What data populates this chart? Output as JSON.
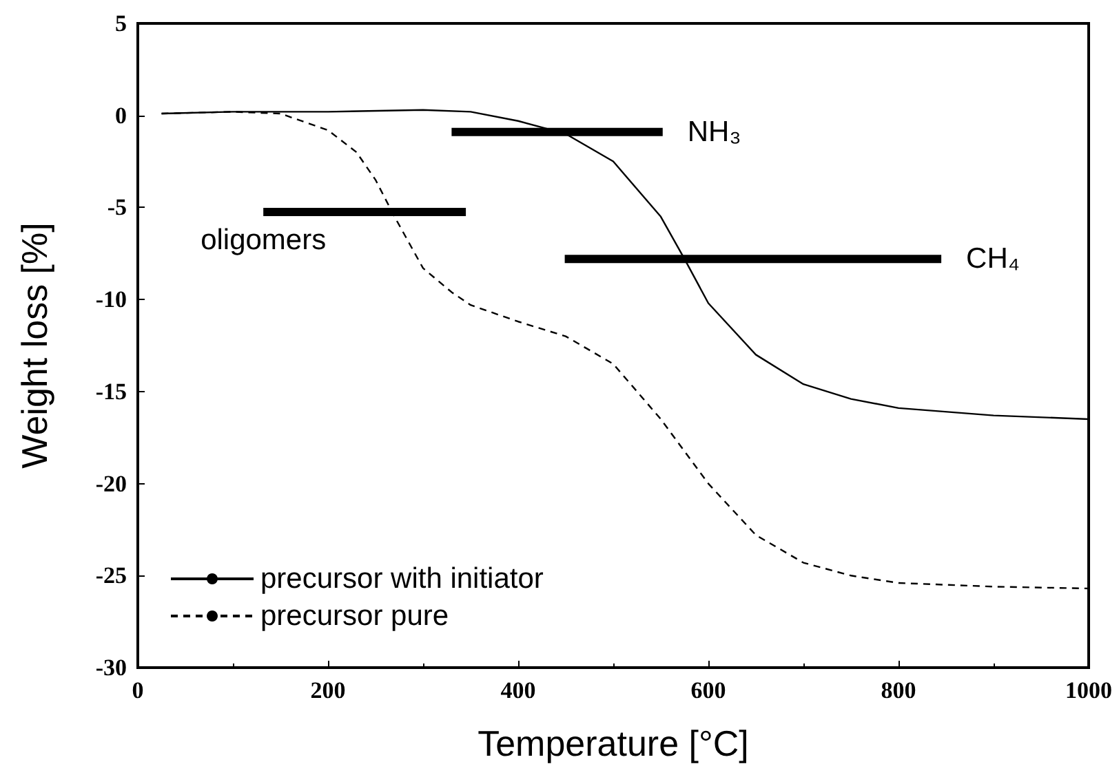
{
  "chart_data": {
    "type": "line",
    "xlabel": "Temperature [°C]",
    "ylabel": "Weight loss [%]",
    "xlim": [
      0,
      1000
    ],
    "xticks": [
      0,
      200,
      400,
      600,
      800,
      1000
    ],
    "ylim": [
      -30,
      5
    ],
    "yticks": [
      -30,
      -25,
      -20,
      -15,
      -10,
      -5,
      0,
      5
    ],
    "grid": false,
    "legend": "bottom left",
    "marker": "none",
    "series": [
      {
        "name": "precursor with initiator",
        "color": "#000000",
        "line_style": "solid",
        "x": [
          25,
          100,
          200,
          300,
          350,
          400,
          450,
          500,
          550,
          575,
          600,
          650,
          700,
          750,
          800,
          900,
          1000
        ],
        "values": [
          0.1,
          0.2,
          0.2,
          0.3,
          0.2,
          -0.3,
          -1,
          -2.5,
          -5.5,
          -7.8,
          -10.2,
          -13,
          -14.6,
          -15.4,
          -15.9,
          -16.3,
          -16.5
        ]
      },
      {
        "name": "precursor pure",
        "color": "#000000",
        "line_style": "dashed",
        "x": [
          25,
          100,
          150,
          200,
          230,
          250,
          270,
          300,
          330,
          350,
          400,
          450,
          500,
          550,
          600,
          650,
          700,
          750,
          800,
          900,
          1000
        ],
        "values": [
          0.1,
          0.2,
          0.1,
          -0.8,
          -2,
          -3.5,
          -5.5,
          -8.3,
          -9.6,
          -10.3,
          -11.2,
          -12,
          -13.5,
          -16.5,
          -20,
          -22.8,
          -24.3,
          -25,
          -25.4,
          -25.6,
          -25.7
        ]
      },
      {
        "name": "oligomers",
        "color": "#000000",
        "line_style": "solid",
        "x": [
          132,
          345
        ],
        "values": [
          -5.25,
          -5.25
        ]
      },
      {
        "name": "NH₃",
        "color": "#000000",
        "line_style": "solid",
        "x": [
          330,
          552
        ],
        "values": [
          -0.9,
          -0.9
        ]
      },
      {
        "name": "CH₄",
        "color": "#000000",
        "line_style": "solid",
        "x": [
          449,
          845
        ],
        "values": [
          -7.8,
          -7.8
        ]
      }
    ]
  }
}
